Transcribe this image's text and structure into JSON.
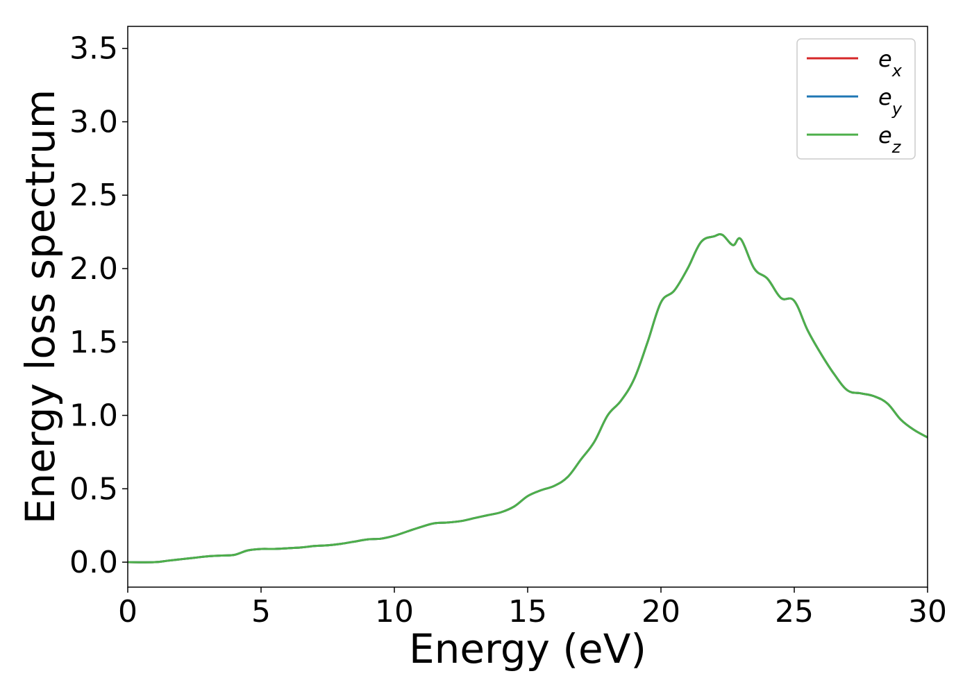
{
  "chart_data": {
    "type": "line",
    "xlabel": "Energy (eV)",
    "ylabel": "Energy loss spectrum",
    "xlim": [
      0,
      30
    ],
    "ylim": [
      -0.17,
      3.65
    ],
    "xticks": [
      0,
      5,
      10,
      15,
      20,
      25,
      30
    ],
    "xtick_labels": [
      "0",
      "5",
      "10",
      "15",
      "20",
      "25",
      "30"
    ],
    "yticks": [
      0.0,
      0.5,
      1.0,
      1.5,
      2.0,
      2.5,
      3.0,
      3.5
    ],
    "ytick_labels": [
      "0.0",
      "0.5",
      "1.0",
      "1.5",
      "2.0",
      "2.5",
      "3.0",
      "3.5"
    ],
    "grid": false,
    "legend_position": "top-right",
    "series": [
      {
        "name_base": "e",
        "name_sub": "x",
        "color": "#d62728",
        "x": [
          0,
          1,
          1.5,
          2,
          2.5,
          3,
          3.5,
          4,
          4.5,
          5,
          5.5,
          6,
          6.5,
          7,
          7.5,
          8,
          8.5,
          9,
          9.5,
          10,
          10.5,
          11,
          11.5,
          12,
          12.5,
          13,
          13.5,
          14,
          14.5,
          15,
          15.5,
          16,
          16.5,
          17,
          17.5,
          18,
          18.5,
          19,
          19.5,
          20,
          20.5,
          21,
          21.5,
          22,
          22.3,
          22.7,
          23,
          23.5,
          24,
          24.5,
          25,
          25.5,
          26,
          26.5,
          27,
          27.5,
          28,
          28.5,
          29,
          29.5,
          30
        ],
        "y": [
          0.0,
          0.0,
          0.01,
          0.02,
          0.03,
          0.04,
          0.045,
          0.05,
          0.08,
          0.09,
          0.09,
          0.095,
          0.1,
          0.11,
          0.115,
          0.125,
          0.14,
          0.155,
          0.16,
          0.18,
          0.21,
          0.24,
          0.265,
          0.27,
          0.28,
          0.3,
          0.32,
          0.34,
          0.38,
          0.45,
          0.49,
          0.52,
          0.58,
          0.7,
          0.82,
          1.0,
          1.1,
          1.25,
          1.5,
          1.77,
          1.85,
          2.0,
          2.18,
          2.22,
          2.23,
          2.16,
          2.2,
          2.0,
          1.93,
          1.8,
          1.78,
          1.58,
          1.42,
          1.28,
          1.17,
          1.15,
          1.13,
          1.08,
          0.97,
          0.9,
          0.85
        ]
      },
      {
        "name_base": "e",
        "name_sub": "y",
        "color": "#1f77b4",
        "x": [
          0,
          1,
          1.5,
          2,
          2.5,
          3,
          3.5,
          4,
          4.5,
          5,
          5.5,
          6,
          6.5,
          7,
          7.5,
          8,
          8.5,
          9,
          9.5,
          10,
          10.5,
          11,
          11.5,
          12,
          12.5,
          13,
          13.5,
          14,
          14.5,
          15,
          15.5,
          16,
          16.5,
          17,
          17.5,
          18,
          18.5,
          19,
          19.5,
          20,
          20.5,
          21,
          21.5,
          22,
          22.3,
          22.7,
          23,
          23.5,
          24,
          24.5,
          25,
          25.5,
          26,
          26.5,
          27,
          27.5,
          28,
          28.5,
          29,
          29.5,
          30
        ],
        "y": [
          0.0,
          0.0,
          0.01,
          0.02,
          0.03,
          0.04,
          0.045,
          0.05,
          0.08,
          0.09,
          0.09,
          0.095,
          0.1,
          0.11,
          0.115,
          0.125,
          0.14,
          0.155,
          0.16,
          0.18,
          0.21,
          0.24,
          0.265,
          0.27,
          0.28,
          0.3,
          0.32,
          0.34,
          0.38,
          0.45,
          0.49,
          0.52,
          0.58,
          0.7,
          0.82,
          1.0,
          1.1,
          1.25,
          1.5,
          1.77,
          1.85,
          2.0,
          2.18,
          2.22,
          2.23,
          2.16,
          2.2,
          2.0,
          1.93,
          1.8,
          1.78,
          1.58,
          1.42,
          1.28,
          1.17,
          1.15,
          1.13,
          1.08,
          0.97,
          0.9,
          0.85
        ]
      },
      {
        "name_base": "e",
        "name_sub": "z",
        "color": "#4daf4a",
        "x": [
          0,
          1,
          1.5,
          2,
          2.5,
          3,
          3.5,
          4,
          4.5,
          5,
          5.5,
          6,
          6.5,
          7,
          7.5,
          8,
          8.5,
          9,
          9.5,
          10,
          10.5,
          11,
          11.5,
          12,
          12.5,
          13,
          13.5,
          14,
          14.5,
          15,
          15.5,
          16,
          16.5,
          17,
          17.5,
          18,
          18.5,
          19,
          19.5,
          20,
          20.5,
          21,
          21.5,
          22,
          22.3,
          22.7,
          23,
          23.5,
          24,
          24.5,
          25,
          25.5,
          26,
          26.5,
          27,
          27.5,
          28,
          28.5,
          29,
          29.5,
          30
        ],
        "y": [
          0.0,
          0.0,
          0.01,
          0.02,
          0.03,
          0.04,
          0.045,
          0.05,
          0.08,
          0.09,
          0.09,
          0.095,
          0.1,
          0.11,
          0.115,
          0.125,
          0.14,
          0.155,
          0.16,
          0.18,
          0.21,
          0.24,
          0.265,
          0.27,
          0.28,
          0.3,
          0.32,
          0.34,
          0.38,
          0.45,
          0.49,
          0.52,
          0.58,
          0.7,
          0.82,
          1.0,
          1.1,
          1.25,
          1.5,
          1.77,
          1.85,
          2.0,
          2.18,
          2.22,
          2.23,
          2.16,
          2.2,
          2.0,
          1.93,
          1.8,
          1.78,
          1.58,
          1.42,
          1.28,
          1.17,
          1.15,
          1.13,
          1.08,
          0.97,
          0.9,
          0.85
        ]
      }
    ]
  }
}
